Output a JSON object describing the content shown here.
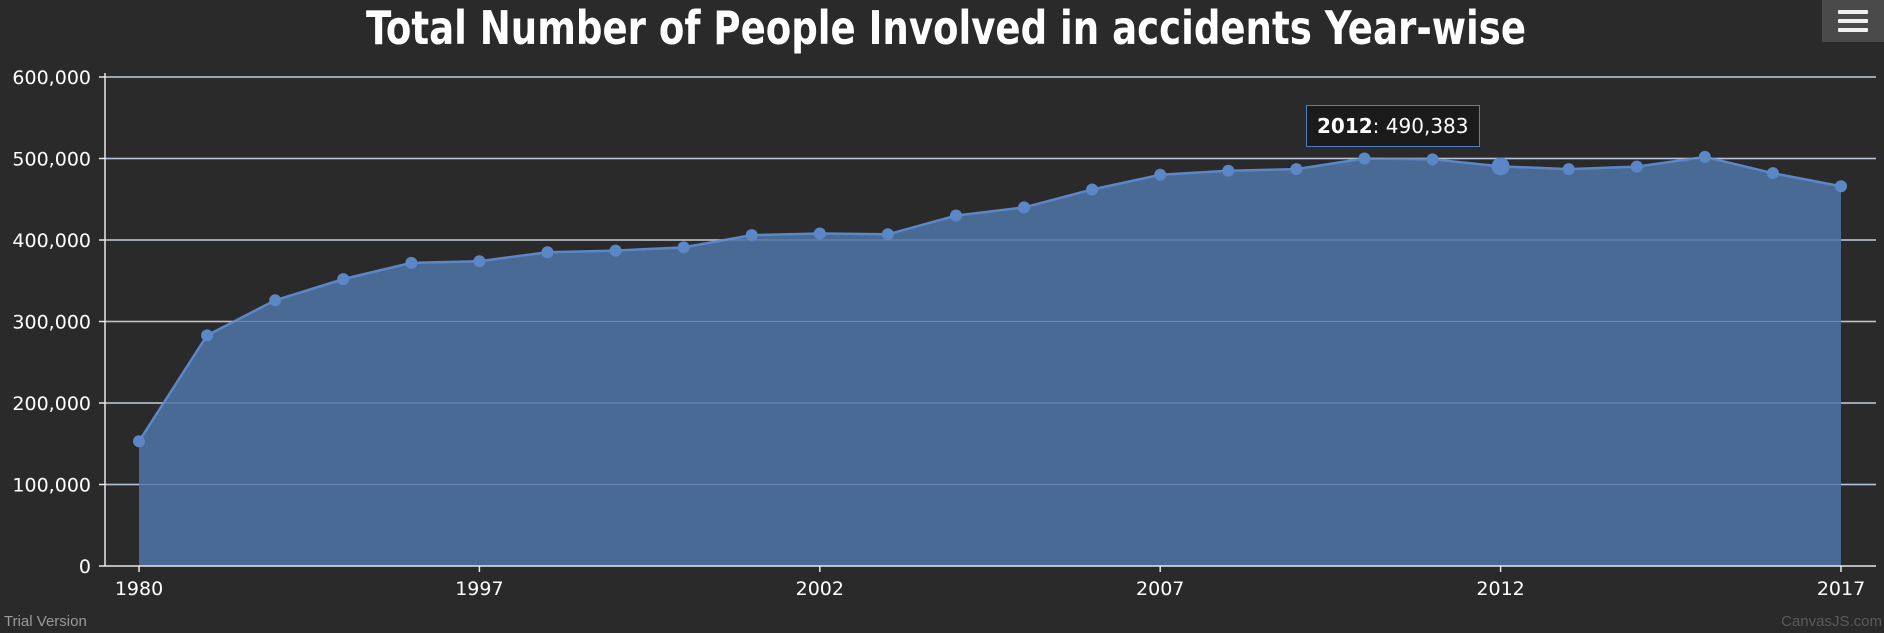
{
  "menu": {
    "icon": "hamburger-menu-icon"
  },
  "tooltip": {
    "year": "2012",
    "value": "490,383"
  },
  "footer": {
    "trial_text": "Trial Version",
    "credit_text": "CanvasJS.com"
  },
  "colors": {
    "background": "#2a2a2a",
    "area_fill": "#4a6a96",
    "line": "#5b87c6",
    "marker": "#5b87c6",
    "grid": "#e8e8e8",
    "text": "#ffffff"
  },
  "chart_data": {
    "type": "area",
    "title": "Total Number of People Involved in accidents Year-wise",
    "xlabel": "",
    "ylabel": "",
    "ylim": [
      0,
      600000
    ],
    "yticks": [
      0,
      100000,
      200000,
      300000,
      400000,
      500000,
      600000
    ],
    "ytick_labels": [
      "0",
      "100,000",
      "200,000",
      "300,000",
      "400,000",
      "500,000",
      "600,000"
    ],
    "xtick_labels": [
      "1980",
      "1997",
      "2002",
      "2007",
      "2012",
      "2017"
    ],
    "grid": true,
    "legend": "none",
    "highlighted_point": {
      "label": "2012",
      "value": 490383
    },
    "series": [
      {
        "labels": [
          "1980",
          "",
          "",
          "",
          "",
          "1997",
          "",
          "",
          "",
          "",
          "2002",
          "",
          "",
          "",
          "",
          "2007",
          "",
          "",
          "",
          "",
          "2012",
          "",
          "",
          "",
          "",
          "2017"
        ],
        "values": [
          153000,
          283000,
          326000,
          352000,
          372000,
          374000,
          385000,
          387000,
          391000,
          406000,
          408000,
          407000,
          430000,
          440000,
          462000,
          480000,
          485000,
          487000,
          500000,
          499000,
          490383,
          487000,
          490000,
          502000,
          482000,
          466000
        ]
      }
    ]
  }
}
